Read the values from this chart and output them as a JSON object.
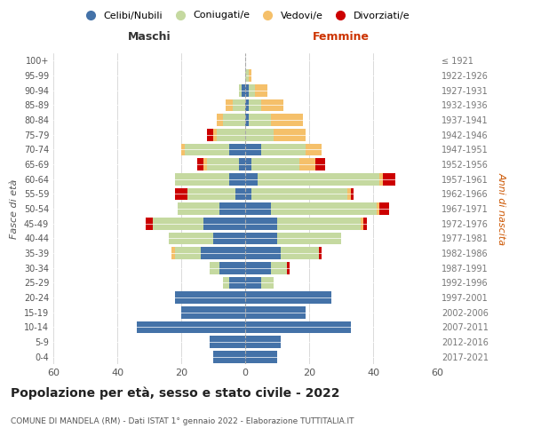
{
  "age_groups": [
    "0-4",
    "5-9",
    "10-14",
    "15-19",
    "20-24",
    "25-29",
    "30-34",
    "35-39",
    "40-44",
    "45-49",
    "50-54",
    "55-59",
    "60-64",
    "65-69",
    "70-74",
    "75-79",
    "80-84",
    "85-89",
    "90-94",
    "95-99",
    "100+"
  ],
  "birth_years": [
    "2017-2021",
    "2012-2016",
    "2007-2011",
    "2002-2006",
    "1997-2001",
    "1992-1996",
    "1987-1991",
    "1982-1986",
    "1977-1981",
    "1972-1976",
    "1967-1971",
    "1962-1966",
    "1957-1961",
    "1952-1956",
    "1947-1951",
    "1942-1946",
    "1937-1941",
    "1932-1936",
    "1927-1931",
    "1922-1926",
    "≤ 1921"
  ],
  "males": {
    "celibi": [
      10,
      11,
      34,
      20,
      22,
      5,
      8,
      14,
      10,
      13,
      8,
      3,
      5,
      2,
      5,
      0,
      0,
      0,
      1,
      0,
      0
    ],
    "coniugati": [
      0,
      0,
      0,
      0,
      0,
      2,
      3,
      8,
      14,
      16,
      13,
      15,
      17,
      10,
      14,
      9,
      7,
      4,
      1,
      0,
      0
    ],
    "vedovi": [
      0,
      0,
      0,
      0,
      0,
      0,
      0,
      1,
      0,
      0,
      0,
      0,
      0,
      1,
      1,
      1,
      2,
      2,
      0,
      0,
      0
    ],
    "divorziati": [
      0,
      0,
      0,
      0,
      0,
      0,
      0,
      0,
      0,
      2,
      0,
      4,
      0,
      2,
      0,
      2,
      0,
      0,
      0,
      0,
      0
    ]
  },
  "females": {
    "nubili": [
      10,
      11,
      33,
      19,
      27,
      5,
      8,
      11,
      10,
      10,
      8,
      2,
      4,
      2,
      5,
      0,
      1,
      1,
      1,
      0,
      0
    ],
    "coniugate": [
      0,
      0,
      0,
      0,
      0,
      4,
      5,
      12,
      20,
      26,
      33,
      30,
      38,
      15,
      14,
      9,
      7,
      4,
      2,
      1,
      0
    ],
    "vedove": [
      0,
      0,
      0,
      0,
      0,
      0,
      0,
      0,
      0,
      1,
      1,
      1,
      1,
      5,
      5,
      10,
      10,
      7,
      4,
      1,
      0
    ],
    "divorziate": [
      0,
      0,
      0,
      0,
      0,
      0,
      1,
      1,
      0,
      1,
      3,
      1,
      4,
      3,
      0,
      0,
      0,
      0,
      0,
      0,
      0
    ]
  },
  "colors": {
    "celibi": "#4472a8",
    "coniugati": "#c5d9a0",
    "vedovi": "#f5c06a",
    "divorziati": "#cc0000"
  },
  "xlim": 60,
  "title": "Popolazione per età, sesso e stato civile - 2022",
  "subtitle": "COMUNE DI MANDELA (RM) - Dati ISTAT 1° gennaio 2022 - Elaborazione TUTTITALIA.IT",
  "ylabel_left": "Fasce di età",
  "ylabel_right": "Anni di nascita",
  "xlabel_maschi": "Maschi",
  "xlabel_femmine": "Femmine",
  "legend_labels": [
    "Celibi/Nubili",
    "Coniugati/e",
    "Vedovi/e",
    "Divorziati/e"
  ],
  "background_color": "#ffffff",
  "grid_color": "#cccccc"
}
